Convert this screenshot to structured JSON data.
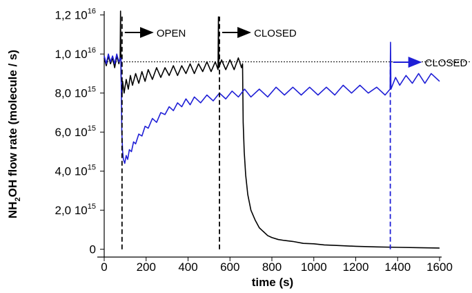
{
  "chart_data": {
    "type": "line",
    "xlabel": "time (s)",
    "ylabel": {
      "before": "NH",
      "subscript": "2",
      "after": "OH flow rate (molecule / s)"
    },
    "xlim": [
      0,
      1600
    ],
    "xticks": [
      0,
      200,
      400,
      600,
      800,
      1000,
      1200,
      1400,
      1600
    ],
    "ylim": [
      -400000000000000.0,
      1.22e+16
    ],
    "yticks": [
      0,
      {
        "value": 2000000000000000.0,
        "label": "2,0 10",
        "exponent": "15"
      },
      {
        "value": 4000000000000000.0,
        "label": "4,0 10",
        "exponent": "15"
      },
      {
        "value": 6000000000000000.0,
        "label": "6,0 10",
        "exponent": "15"
      },
      {
        "value": 8000000000000000.0,
        "label": "8,0 10",
        "exponent": "15"
      },
      {
        "value": 1e+16,
        "label": "1,0 10",
        "exponent": "16"
      },
      {
        "value": 1.2e+16,
        "label": "1,2 10",
        "exponent": "16"
      }
    ],
    "reference": 9600000000000000.0,
    "events": [
      {
        "time": 85,
        "label": "OPEN",
        "color": "#000000"
      },
      {
        "time": 550,
        "label": "CLOSED",
        "color": "#000000"
      },
      {
        "time": 1365,
        "label": "CLOSED",
        "color": "#1f1fd6"
      }
    ],
    "series": [
      {
        "color": "#000000",
        "x": [
          0,
          10,
          20,
          30,
          40,
          50,
          60,
          70,
          76,
          78,
          80,
          84,
          88,
          95,
          105,
          115,
          125,
          135,
          150,
          165,
          180,
          195,
          210,
          230,
          250,
          270,
          290,
          310,
          330,
          350,
          370,
          390,
          410,
          430,
          450,
          470,
          490,
          510,
          530,
          543,
          545,
          547,
          560,
          580,
          600,
          620,
          640,
          655,
          660,
          663,
          668,
          675,
          685,
          700,
          720,
          740,
          760,
          780,
          800,
          830,
          860,
          900,
          950,
          1000,
          1050,
          1100,
          1200,
          1300,
          1400,
          1500,
          1600
        ],
        "values": [
          9800000000000000.0,
          9400000000000000.0,
          9900000000000000.0,
          9500000000000000.0,
          9800000000000000.0,
          9300000000000000.0,
          9900000000000000.0,
          9500000000000000.0,
          9800000000000000.0,
          1.22e+16,
          9000000000000000.0,
          7800000000000000.0,
          8600000000000000.0,
          8000000000000000.0,
          8700000000000000.0,
          8200000000000000.0,
          8900000000000000.0,
          8400000000000000.0,
          9000000000000000.0,
          8500000000000000.0,
          9100000000000000.0,
          8600000000000000.0,
          9200000000000000.0,
          8700000000000000.0,
          9300000000000000.0,
          8800000000000000.0,
          9300000000000000.0,
          8900000000000000.0,
          9400000000000000.0,
          8900000000000000.0,
          9400000000000000.0,
          9000000000000000.0,
          9500000000000000.0,
          9000000000000000.0,
          9500000000000000.0,
          9100000000000000.0,
          9600000000000000.0,
          9100000000000000.0,
          9600000000000000.0,
          9200000000000000.0,
          1.19e+16,
          9300000000000000.0,
          9700000000000000.0,
          9200000000000000.0,
          9700000000000000.0,
          9200000000000000.0,
          9800000000000000.0,
          9300000000000000.0,
          9500000000000000.0,
          6500000000000000.0,
          5000000000000000.0,
          3800000000000000.0,
          2800000000000000.0,
          2000000000000000.0,
          1500000000000000.0,
          1100000000000000.0,
          900000000000000.0,
          700000000000000.0,
          600000000000000.0,
          500000000000000.0,
          450000000000000.0,
          400000000000000.0,
          300000000000000.0,
          280000000000000.0,
          220000000000000.0,
          200000000000000.0,
          150000000000000.0,
          120000000000000.0,
          100000000000000.0,
          80000000000000.0,
          60000000000000.0
        ]
      },
      {
        "color": "#1f1fd6",
        "x": [
          0,
          10,
          20,
          30,
          40,
          50,
          60,
          70,
          80,
          84,
          88,
          92,
          98,
          105,
          112,
          120,
          130,
          140,
          150,
          165,
          180,
          195,
          210,
          230,
          250,
          270,
          290,
          310,
          330,
          350,
          370,
          390,
          410,
          430,
          460,
          490,
          520,
          550,
          580,
          610,
          640,
          670,
          700,
          740,
          780,
          820,
          860,
          900,
          940,
          980,
          1020,
          1060,
          1100,
          1140,
          1180,
          1220,
          1260,
          1300,
          1340,
          1364,
          1366,
          1368,
          1390,
          1410,
          1440,
          1470,
          1500,
          1530,
          1560,
          1600
        ],
        "values": [
          9900000000000000.0,
          9500000000000000.0,
          1e+16,
          9600000000000000.0,
          9900000000000000.0,
          9500000000000000.0,
          1e+16,
          9600000000000000.0,
          9800000000000000.0,
          6000000000000000.0,
          5000000000000000.0,
          4600000000000000.0,
          4400000000000000.0,
          4800000000000000.0,
          4600000000000000.0,
          5100000000000000.0,
          5000000000000000.0,
          5500000000000000.0,
          5400000000000000.0,
          5900000000000000.0,
          5800000000000000.0,
          6300000000000000.0,
          6200000000000000.0,
          6700000000000000.0,
          6500000000000000.0,
          7000000000000000.0,
          6900000000000000.0,
          7300000000000000.0,
          7100000000000000.0,
          7500000000000000.0,
          7300000000000000.0,
          7700000000000000.0,
          7400000000000000.0,
          7800000000000000.0,
          7500000000000000.0,
          7900000000000000.0,
          7600000000000000.0,
          8000000000000000.0,
          7700000000000000.0,
          8100000000000000.0,
          7800000000000000.0,
          8200000000000000.0,
          7800000000000000.0,
          8200000000000000.0,
          7800000000000000.0,
          8300000000000000.0,
          7900000000000000.0,
          8300000000000000.0,
          7900000000000000.0,
          8300000000000000.0,
          7900000000000000.0,
          8300000000000000.0,
          7900000000000000.0,
          8400000000000000.0,
          8000000000000000.0,
          8400000000000000.0,
          8000000000000000.0,
          8300000000000000.0,
          7900000000000000.0,
          8200000000000000.0,
          1.06e+16,
          8200000000000000.0,
          8800000000000000.0,
          8400000000000000.0,
          8900000000000000.0,
          8500000000000000.0,
          9000000000000000.0,
          8500000000000000.0,
          9000000000000000.0,
          8600000000000000.0
        ]
      }
    ]
  }
}
